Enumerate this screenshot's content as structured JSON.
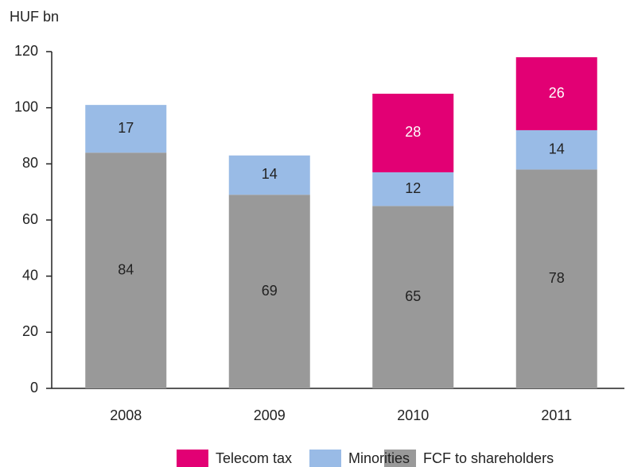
{
  "chart_data": {
    "type": "stacked_bar",
    "y_label": "HUF bn",
    "categories": [
      "2008",
      "2009",
      "2010",
      "2011"
    ],
    "series": [
      {
        "name": "FCF to shareholders",
        "color": "#999999",
        "values": [
          84,
          69,
          65,
          78
        ]
      },
      {
        "name": "Minorities",
        "color": "#99bbe6",
        "values": [
          17,
          14,
          12,
          14
        ]
      },
      {
        "name": "Telecom tax",
        "color": "#e20074",
        "values": [
          null,
          null,
          28,
          26
        ]
      }
    ],
    "ylim": [
      0,
      120
    ],
    "yticks": [
      0,
      20,
      40,
      60,
      80,
      100,
      120
    ],
    "grid": false
  }
}
